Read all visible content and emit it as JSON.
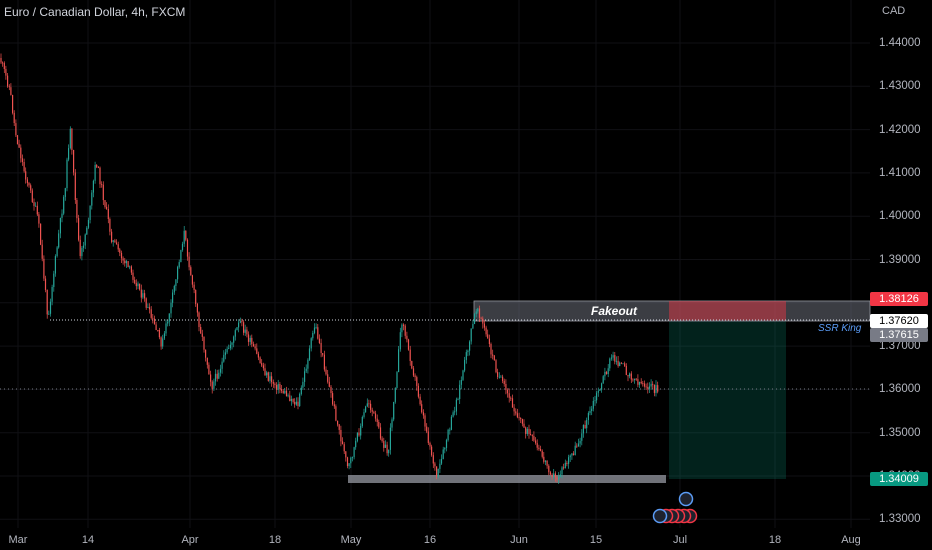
{
  "header": {
    "title": "Euro / Canadian Dollar, 4h, FXCM",
    "currency": "CAD"
  },
  "price_axis": {
    "ticks": [
      "1.44000",
      "1.43000",
      "1.42000",
      "1.41000",
      "1.40000",
      "1.39000",
      "1.38000",
      "1.37000",
      "1.36000",
      "1.35000",
      "1.34000",
      "1.33000"
    ]
  },
  "time_axis": {
    "ticks": [
      "Mar",
      "14",
      "Apr",
      "18",
      "May",
      "16",
      "Jun",
      "15",
      "Jul",
      "18",
      "Aug"
    ]
  },
  "price_tags": [
    {
      "label": "1.38126",
      "bg": "#f23645",
      "fg": "#ffffff"
    },
    {
      "label": "1.37620",
      "bg": "#ffffff",
      "fg": "#000000"
    },
    {
      "label": "1.37615",
      "bg": "#787b86",
      "fg": "#ffffff"
    },
    {
      "label": "1.34009",
      "bg": "#089981",
      "fg": "#ffffff"
    }
  ],
  "annotations": {
    "fakeout": "Fakeout",
    "author": "SSR King"
  },
  "colors": {
    "up": "#26a69a",
    "down": "#ef5350"
  },
  "chart_data": {
    "type": "candlestick",
    "symbol": "EURCAD",
    "timeframe": "4h",
    "ylim": [
      1.327,
      1.448
    ],
    "price_path": [
      [
        "Mar",
        1.434
      ],
      [
        "Mar 2",
        1.428
      ],
      [
        "Mar 4",
        1.418
      ],
      [
        "Mar 6",
        1.406
      ],
      [
        "Mar 8",
        1.396
      ],
      [
        "Mar 9",
        1.378
      ],
      [
        "Mar 11",
        1.398
      ],
      [
        "Mar 13",
        1.41
      ],
      [
        "Mar 15",
        1.423
      ],
      [
        "Mar 17",
        1.394
      ],
      [
        "Mar 19",
        1.4
      ],
      [
        "Mar 21",
        1.414
      ],
      [
        "Mar 24",
        1.388
      ],
      [
        "Mar 27",
        1.379
      ],
      [
        "Mar 29",
        1.371
      ],
      [
        "Apr",
        1.381
      ],
      [
        "Apr 3",
        1.396
      ],
      [
        "Apr 6",
        1.37
      ],
      [
        "Apr 9",
        1.361
      ],
      [
        "Apr 14",
        1.376
      ],
      [
        "Apr 18",
        1.362
      ],
      [
        "Apr 23",
        1.356
      ],
      [
        "Apr 27",
        1.375
      ],
      [
        "May",
        1.342
      ],
      [
        "May 5",
        1.354
      ],
      [
        "May 9",
        1.344
      ],
      [
        "May 13",
        1.376
      ],
      [
        "May 17",
        1.341
      ],
      [
        "May 21",
        1.362
      ],
      [
        "May 25",
        1.38
      ],
      [
        "Jun",
        1.354
      ],
      [
        "Jun 6",
        1.346
      ],
      [
        "Jun 10",
        1.341
      ],
      [
        "Jun 14",
        1.348
      ],
      [
        "Jun 17",
        1.36
      ],
      [
        "Jun 19",
        1.371
      ],
      [
        "Jun 22",
        1.365
      ],
      [
        "Jun 25",
        1.361
      ]
    ],
    "levels": {
      "previous_low": 1.3762,
      "support": 1.34009,
      "fakeout_zone": [
        1.37615,
        1.38126
      ]
    },
    "position": {
      "type": "long",
      "entry": 1.37615,
      "stop": 1.38126,
      "target": 1.34009
    },
    "current_price": 1.36
  }
}
